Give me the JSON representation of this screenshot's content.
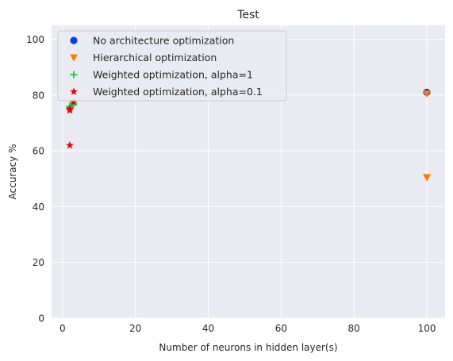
{
  "chart_data": {
    "type": "scatter",
    "title": "Test",
    "xlabel": "Number of neurons in hidden layer(s)",
    "ylabel": "Accuracy %",
    "xlim": [
      -3,
      105
    ],
    "ylim": [
      0,
      105
    ],
    "xticks": [
      0,
      20,
      40,
      60,
      80,
      100
    ],
    "yticks": [
      0,
      20,
      40,
      60,
      80,
      100
    ],
    "grid": true,
    "legend_position": "top-left",
    "series": [
      {
        "name": "No architecture optimization",
        "marker": "circle",
        "color": "#0b3fe0",
        "points": [
          {
            "x": 100,
            "y": 81
          }
        ]
      },
      {
        "name": "Hierarchical optimization",
        "marker": "triangle-down",
        "color": "#ff7c00",
        "points": [
          {
            "x": 100,
            "y": 80.5
          },
          {
            "x": 100,
            "y": 50.5
          }
        ]
      },
      {
        "name": "Weighted optimization, alpha=1",
        "marker": "plus",
        "color": "#1ac938",
        "points": [
          {
            "x": 2,
            "y": 76
          },
          {
            "x": 2,
            "y": 75.5
          },
          {
            "x": 3,
            "y": 76.5
          },
          {
            "x": 3,
            "y": 77
          }
        ]
      },
      {
        "name": "Weighted optimization, alpha=0.1",
        "marker": "star",
        "color": "#e8000b",
        "points": [
          {
            "x": 2,
            "y": 74.5
          },
          {
            "x": 2,
            "y": 75
          },
          {
            "x": 3,
            "y": 77.5
          },
          {
            "x": 2,
            "y": 62
          }
        ]
      }
    ]
  }
}
